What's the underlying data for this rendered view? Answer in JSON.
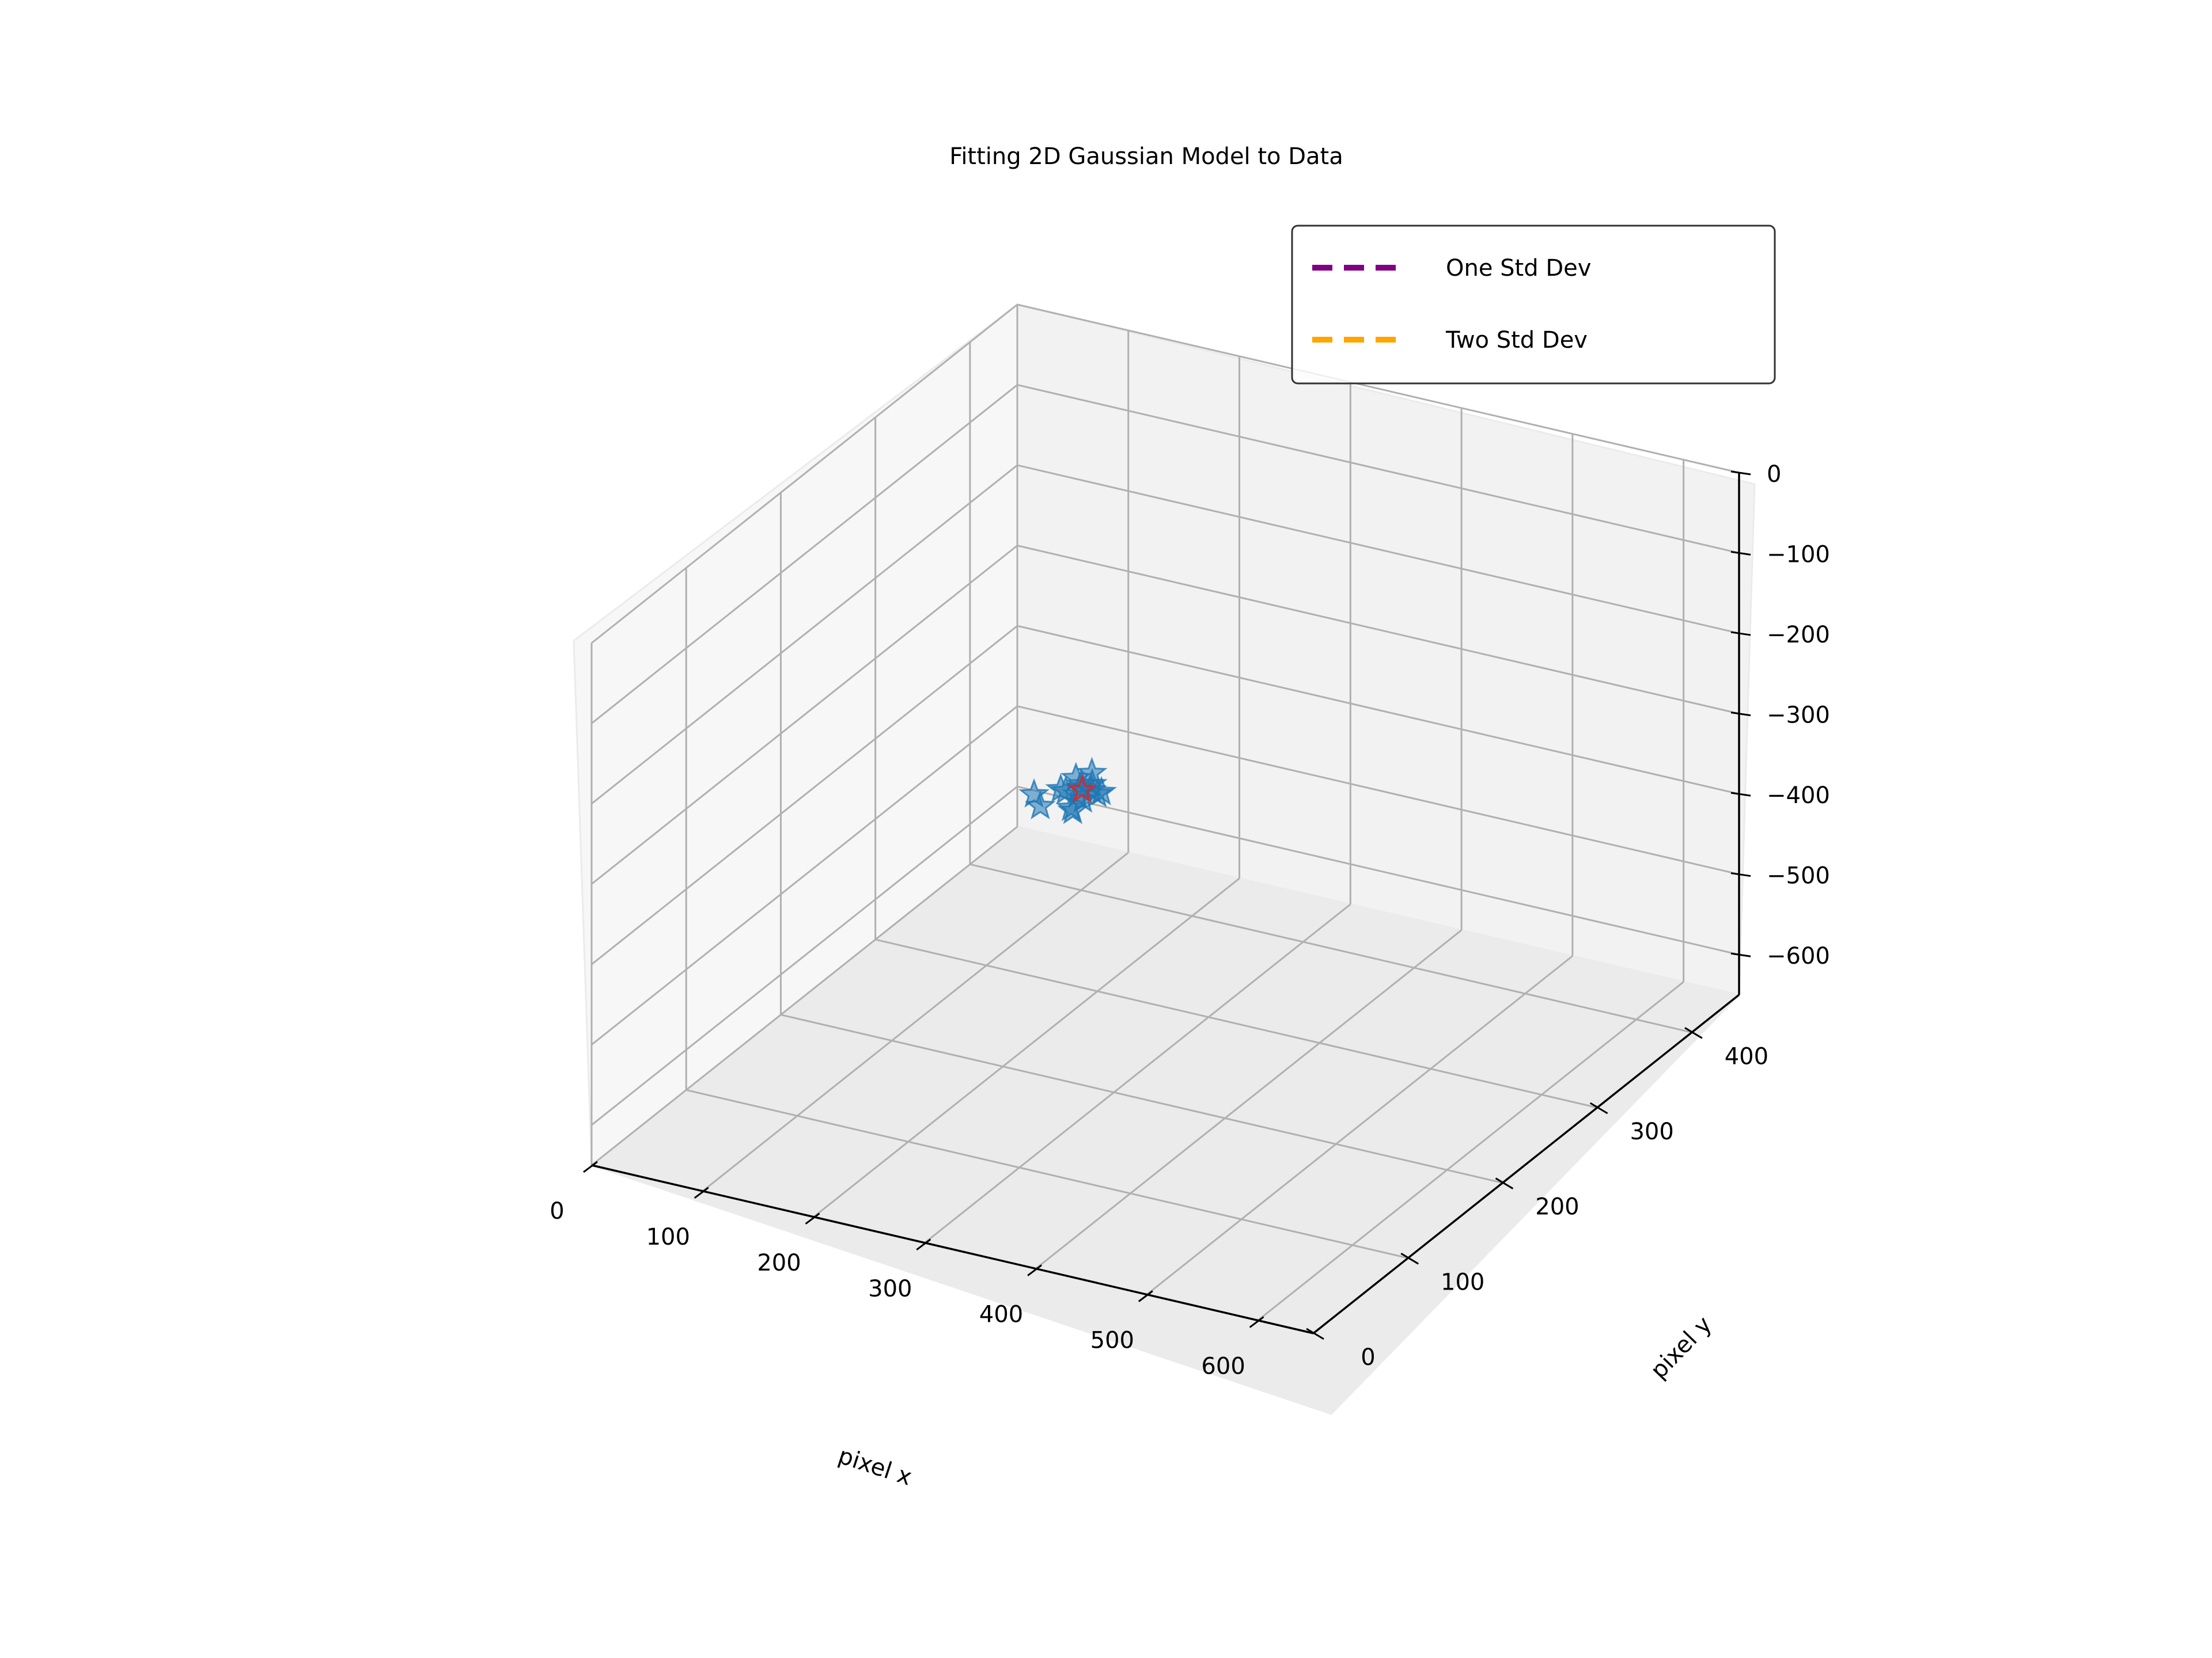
{
  "chart_data": {
    "type": "scatter",
    "title": "Fitting 2D Gaussian Model to Data",
    "xlabel": "pixel x",
    "ylabel": "pixel y",
    "zlabel": "",
    "x_ticks": [
      "0",
      "100",
      "200",
      "300",
      "400",
      "500",
      "600"
    ],
    "y_ticks": [
      "0",
      "100",
      "200",
      "300",
      "400"
    ],
    "z_ticks": [
      "0",
      "−100",
      "−200",
      "−300",
      "−400",
      "−500",
      "−600"
    ],
    "xlim": [
      0,
      650
    ],
    "ylim": [
      0,
      450
    ],
    "zlim": [
      -650,
      0
    ],
    "grid": true,
    "legend": {
      "placement": "top-right",
      "entries": [
        {
          "label": "One Std Dev",
          "color": "#800080",
          "style": "dashed"
        },
        {
          "label": "Two Std Dev",
          "color": "#ffa500",
          "style": "dashed"
        }
      ]
    },
    "series": [
      {
        "marker": "star",
        "color": "#1f77b4",
        "points": [
          {
            "x": 329,
            "y": 130,
            "z": -196
          },
          {
            "x": 335,
            "y": 126,
            "z": -205
          },
          {
            "x": 322,
            "y": 134,
            "z": -190
          },
          {
            "x": 340,
            "y": 130,
            "z": -188
          },
          {
            "x": 328,
            "y": 122,
            "z": -214
          },
          {
            "x": 318,
            "y": 128,
            "z": -202
          },
          {
            "x": 345,
            "y": 134,
            "z": -200
          },
          {
            "x": 333,
            "y": 138,
            "z": -184
          },
          {
            "x": 326,
            "y": 126,
            "z": -222
          },
          {
            "x": 310,
            "y": 132,
            "z": -206
          },
          {
            "x": 337,
            "y": 122,
            "z": -182
          },
          {
            "x": 331,
            "y": 140,
            "z": -208
          },
          {
            "x": 348,
            "y": 126,
            "z": -194
          },
          {
            "x": 320,
            "y": 138,
            "z": -215
          },
          {
            "x": 295,
            "y": 128,
            "z": -228
          },
          {
            "x": 286,
            "y": 132,
            "z": -220
          }
        ]
      },
      {
        "marker": "star",
        "color": "#d62728",
        "points": [
          {
            "x": 331,
            "y": 130,
            "z": -198
          }
        ]
      }
    ]
  }
}
